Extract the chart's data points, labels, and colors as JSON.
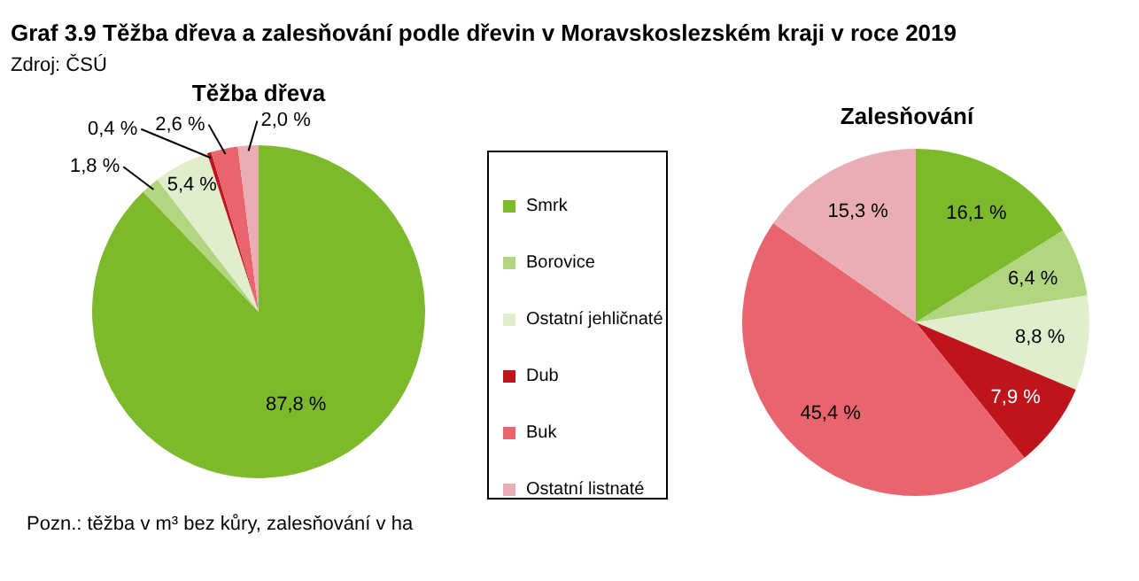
{
  "chart_data": [
    {
      "type": "pie",
      "title": "Těžba dřeva",
      "categories": [
        "Smrk",
        "Borovice",
        "Ostatní jehličnaté",
        "Dub",
        "Buk",
        "Ostatní listnaté"
      ],
      "values": [
        87.8,
        1.8,
        5.4,
        0.4,
        2.6,
        2.0
      ],
      "colors": [
        "#7dba2b",
        "#b1d67f",
        "#e0eecd",
        "#c0141c",
        "#e8656d",
        "#e8aeb3"
      ],
      "value_labels": [
        "87,8 %",
        "1,8 %",
        "5,4 %",
        "0,4 %",
        "2,6 %",
        "2,0 %"
      ],
      "legend": "right",
      "annotations": [
        "Graf 3.9 Těžba dřeva a zalesňování podle dřevin v Moravskoslezském kraji v roce 2019",
        "Zdroj: ČSÚ",
        "Pozn.: těžba v m³ bez kůry, zalesňování v ha"
      ]
    },
    {
      "type": "pie",
      "title": "Zalesňování",
      "categories": [
        null,
        null,
        null,
        null,
        null,
        null
      ],
      "values": [
        16.1,
        6.4,
        8.8,
        7.9,
        45.4,
        15.3
      ],
      "colors": [
        "#7dba2b",
        "#b1d67f",
        "#e0eecd",
        "#c0141c",
        "#e8656d",
        "#e8aeb3"
      ],
      "value_labels": [
        "16,1 %",
        "6,4 %",
        "8,8 %",
        "7,9 %",
        "45,4 %",
        "15,3 %"
      ]
    }
  ]
}
